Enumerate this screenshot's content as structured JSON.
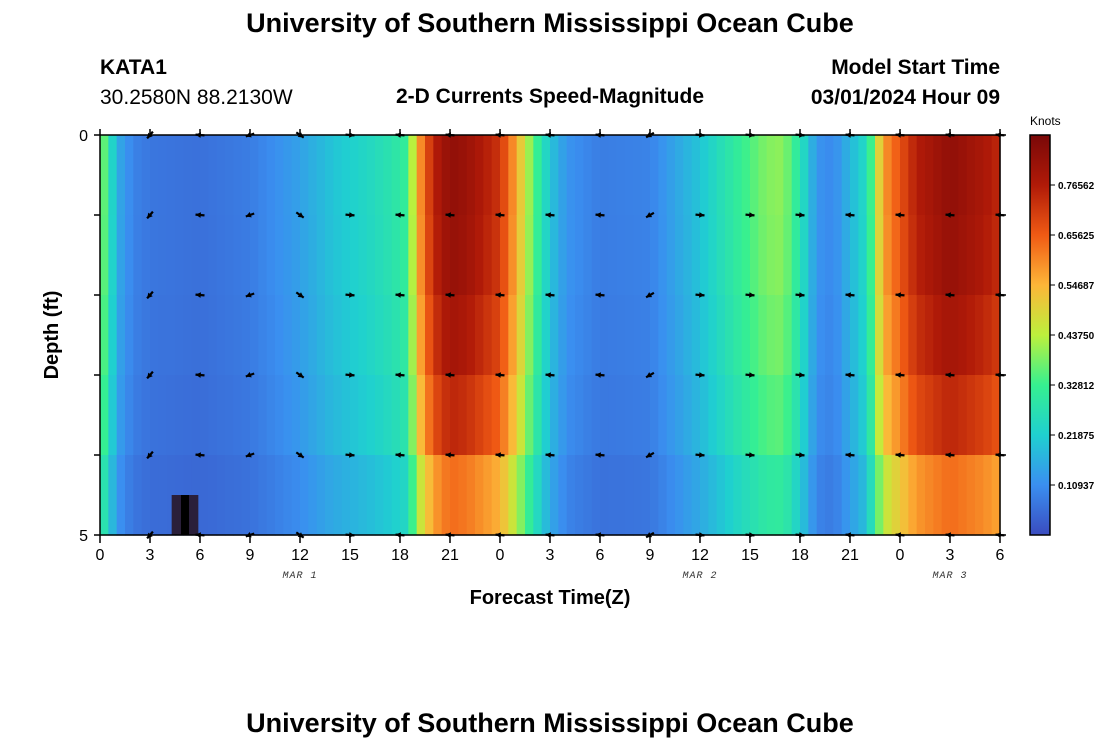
{
  "header": {
    "title": "University of Southern Mississippi Ocean Cube",
    "station": "KATA1",
    "coords": "30.2580N  88.2130W",
    "subtitle": "2-D Currents Speed-Magnitude",
    "model_label": "Model Start Time",
    "model_time": "03/01/2024 Hour 09",
    "bottom_title": "University of Southern Mississippi Ocean Cube"
  },
  "chart_data": {
    "type": "heatmap",
    "xlabel": "Forecast Time(Z)",
    "ylabel": "Depth (ft)",
    "x_hours_range": [
      0,
      54
    ],
    "x_tick_hours": [
      0,
      3,
      6,
      9,
      12,
      15,
      18,
      21,
      24,
      27,
      30,
      33,
      36,
      39,
      42,
      45,
      48,
      51,
      54
    ],
    "x_tick_labels": [
      "0",
      "3",
      "6",
      "9",
      "12",
      "15",
      "18",
      "21",
      "0",
      "3",
      "6",
      "9",
      "12",
      "15",
      "18",
      "21",
      "0",
      "3",
      "6"
    ],
    "date_labels": [
      {
        "hour": 12,
        "text": "MAR 1"
      },
      {
        "hour": 36,
        "text": "MAR 2"
      },
      {
        "hour": 51,
        "text": "MAR 3"
      }
    ],
    "y_range": [
      0,
      5
    ],
    "y_tick_labels": [
      "0",
      "5"
    ],
    "colorbar": {
      "title": "Knots",
      "range": [
        0,
        0.875
      ],
      "tick_values": [
        0.10937,
        0.21875,
        0.32812,
        0.4375,
        0.54687,
        0.65625,
        0.76562
      ],
      "tick_labels": [
        "0.10937",
        "0.21875",
        "0.32812",
        "0.43750",
        "0.54687",
        "0.65625",
        "0.76562"
      ],
      "colors": [
        "#3a4cc0",
        "#3a8ff0",
        "#1fd0d0",
        "#36f090",
        "#bdf03c",
        "#fdb638",
        "#f05a14",
        "#b01a08",
        "#7a0808"
      ]
    },
    "depth_levels_ft": [
      0,
      1,
      2,
      3,
      4,
      5
    ],
    "speed_profile": {
      "hours": [
        0,
        0.5,
        1,
        2,
        3,
        6,
        9,
        12,
        14,
        16,
        17.5,
        18.5,
        19,
        20,
        21,
        22,
        24,
        25,
        26,
        27,
        28,
        30,
        33,
        36,
        38,
        40,
        41,
        42,
        43,
        44,
        46,
        47,
        49,
        51,
        53,
        54
      ],
      "speed_knots": [
        0.42,
        0.3,
        0.16,
        0.09,
        0.07,
        0.06,
        0.08,
        0.14,
        0.2,
        0.24,
        0.28,
        0.32,
        0.55,
        0.75,
        0.83,
        0.81,
        0.72,
        0.56,
        0.36,
        0.2,
        0.12,
        0.08,
        0.09,
        0.2,
        0.3,
        0.39,
        0.4,
        0.28,
        0.12,
        0.1,
        0.25,
        0.58,
        0.76,
        0.83,
        0.78,
        0.74
      ],
      "depth_attenuation": 0.18
    },
    "missing_cells": [
      {
        "hour_start": 4.3,
        "hour_end": 5.9,
        "depth_start": 4.5,
        "depth_end": 5.0
      }
    ],
    "arrows": {
      "hours": [
        3,
        6,
        9,
        12,
        15,
        18,
        21,
        24,
        27,
        30,
        33,
        36,
        39,
        42,
        45,
        48,
        51,
        54
      ],
      "depths_ft": [
        0,
        1,
        2,
        3,
        4,
        5
      ],
      "direction_deg_by_hour": [
        130,
        185,
        160,
        35,
        5,
        185,
        185,
        185,
        185,
        185,
        150,
        5,
        5,
        5,
        185,
        185,
        185,
        185
      ]
    }
  }
}
